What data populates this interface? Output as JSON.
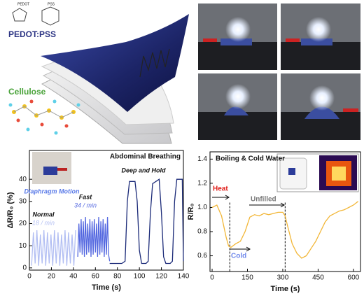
{
  "illustration": {
    "title": "PEDOT:PSS",
    "substrate": "Cellulose",
    "monomer_1": "PEDOT",
    "monomer_2": "PSS"
  },
  "chart_data": [
    {
      "type": "line",
      "title": "Abdominal Breathing",
      "x_label": "Time (s)",
      "y_label": "ΔR/R₀ (%)",
      "inset_label": "Diaphragm Motion",
      "xlim": [
        0,
        140
      ],
      "xticks": [
        0,
        20,
        40,
        60,
        80,
        100,
        120,
        140
      ],
      "ylim": [
        -1,
        53
      ],
      "yticks": [
        0,
        10,
        20,
        30,
        40
      ],
      "series": [
        {
          "name": "Normal",
          "rate": "18 / min",
          "color": "#b3bff3",
          "x": [
            2,
            3.6,
            5.2,
            6.8,
            8.4,
            10,
            11.6,
            13.2,
            14.8,
            16.4,
            18,
            19.6,
            21.2,
            22.8,
            24.4,
            26,
            27.6,
            29.2,
            30.8,
            32.4,
            34,
            35.6,
            37.2,
            38.8,
            40.4,
            42
          ],
          "values": [
            1,
            16,
            2,
            17,
            1,
            15,
            2,
            17,
            1,
            16,
            2,
            15,
            1,
            17,
            2,
            16,
            1,
            15,
            2,
            17,
            1,
            16,
            2,
            15,
            1,
            17
          ]
        },
        {
          "name": "Fast",
          "rate": "34 / min",
          "color": "#5468e0",
          "x": [
            44,
            45,
            46,
            47,
            48,
            49,
            50,
            51,
            52,
            53,
            54,
            55,
            56,
            57,
            58,
            59,
            60,
            61,
            62,
            63,
            64,
            65,
            66,
            67,
            68,
            69,
            70,
            71,
            72,
            73
          ],
          "values": [
            5,
            20,
            7,
            22,
            6,
            21,
            5,
            23,
            6,
            20,
            7,
            22,
            5,
            21,
            6,
            22,
            7,
            20,
            5,
            23,
            6,
            21,
            7,
            22,
            5,
            20,
            6,
            23,
            6,
            3
          ]
        },
        {
          "name": "Deep and Hold",
          "color": "#1b2a78",
          "x": [
            73,
            78,
            84,
            87,
            89,
            91,
            96,
            98,
            100,
            102,
            106,
            108,
            110,
            112,
            118,
            120,
            122,
            124,
            128,
            130,
            132,
            134,
            139,
            140
          ],
          "values": [
            2,
            2,
            2,
            3,
            30,
            39,
            39,
            30,
            8,
            2,
            2,
            3,
            25,
            38,
            40,
            25,
            5,
            2,
            2,
            3,
            30,
            40,
            40,
            3
          ]
        }
      ]
    },
    {
      "type": "line",
      "title": "Boiling & Cold Water",
      "x_label": "Time (s)",
      "y_label": "R/R₀",
      "color": "#f2b636",
      "annotations": [
        "Heat",
        "Cold",
        "Unfilled"
      ],
      "markers": [
        75,
        310
      ],
      "xlim": [
        -9,
        630
      ],
      "xticks": [
        0,
        150,
        300,
        450,
        600
      ],
      "ylim": [
        0.47,
        1.46
      ],
      "yticks": [
        0.6,
        0.8,
        {
          "value": 1,
          "label": "1.0"
        },
        1.2,
        1.4
      ],
      "x": [
        0,
        20,
        40,
        60,
        70,
        80,
        100,
        120,
        140,
        160,
        180,
        200,
        220,
        240,
        260,
        280,
        300,
        310,
        320,
        340,
        360,
        380,
        400,
        420,
        440,
        460,
        480,
        500,
        520,
        540,
        560,
        580,
        600,
        620
      ],
      "values": [
        1.0,
        1.02,
        0.93,
        0.75,
        0.68,
        0.67,
        0.7,
        0.72,
        0.8,
        0.92,
        0.94,
        0.93,
        0.95,
        0.94,
        0.95,
        0.96,
        0.96,
        0.93,
        0.85,
        0.7,
        0.62,
        0.58,
        0.6,
        0.66,
        0.72,
        0.8,
        0.88,
        0.93,
        0.95,
        0.97,
        0.98,
        1.0,
        1.02,
        1.05
      ]
    }
  ]
}
